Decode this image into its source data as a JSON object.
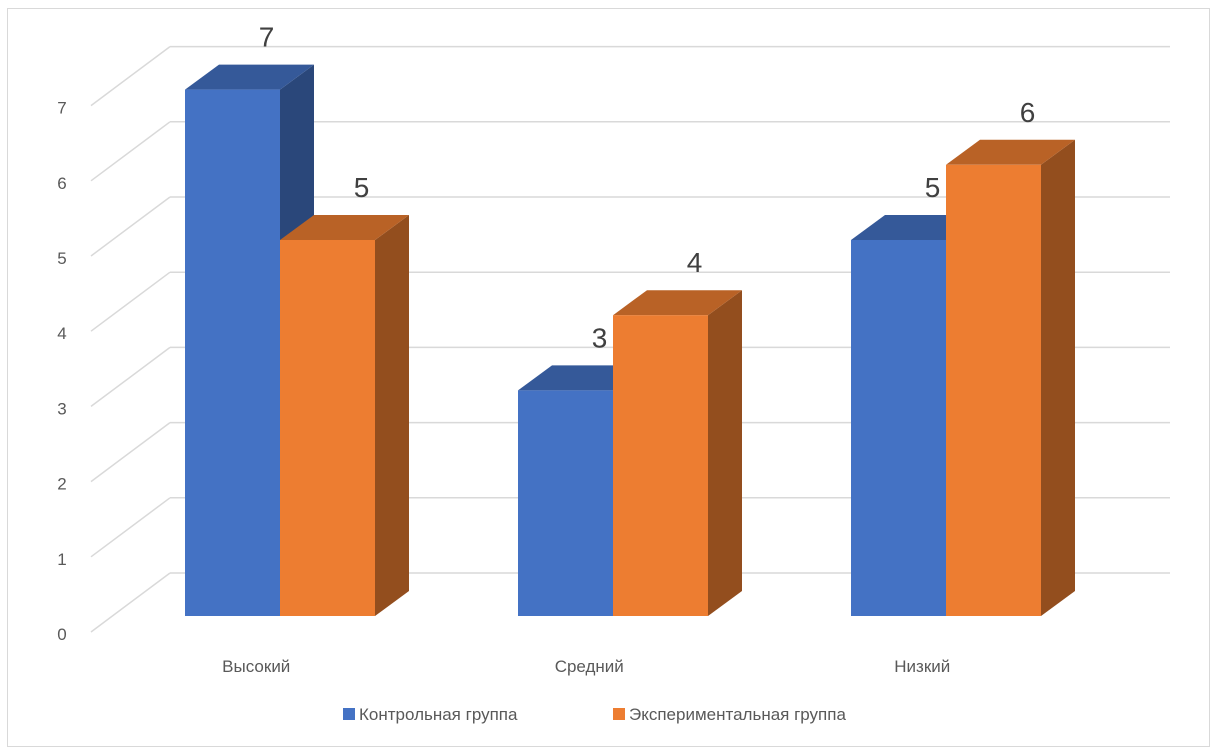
{
  "chart_data": {
    "type": "bar",
    "categories": [
      "Высокий",
      "Средний",
      "Низкий"
    ],
    "series": [
      {
        "name": "Контрольная группа",
        "values": [
          7,
          3,
          5
        ],
        "color": "#4472C4"
      },
      {
        "name": "Экспериментальная группа",
        "values": [
          5,
          4,
          6
        ],
        "color": "#ED7D31"
      }
    ],
    "title": "",
    "xlabel": "",
    "ylabel": "",
    "ylim": [
      0,
      7
    ],
    "yticks": [
      0,
      1,
      2,
      3,
      4,
      5,
      6,
      7
    ],
    "grid": true,
    "legend_position": "bottom",
    "style": "3d-column"
  }
}
